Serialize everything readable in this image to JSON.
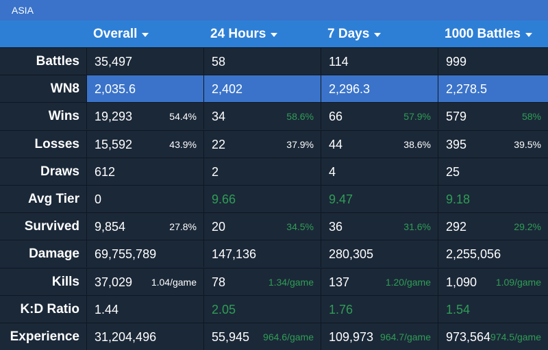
{
  "region": "ASIA",
  "columns": [
    "Overall",
    "24 Hours",
    "7 Days",
    "1000 Battles"
  ],
  "rows": [
    {
      "label": "Battles",
      "cells": [
        {
          "value": "35,497"
        },
        {
          "value": "58"
        },
        {
          "value": "114"
        },
        {
          "value": "999"
        }
      ]
    },
    {
      "label": "WN8",
      "highlight": true,
      "cells": [
        {
          "value": "2,035.6"
        },
        {
          "value": "2,402"
        },
        {
          "value": "2,296.3"
        },
        {
          "value": "2,278.5"
        }
      ]
    },
    {
      "label": "Wins",
      "cells": [
        {
          "value": "19,293",
          "sub": "54.4%"
        },
        {
          "value": "34",
          "sub": "58.6%",
          "sub_green": true
        },
        {
          "value": "66",
          "sub": "57.9%",
          "sub_green": true
        },
        {
          "value": "579",
          "sub": "58%",
          "sub_green": true
        }
      ]
    },
    {
      "label": "Losses",
      "cells": [
        {
          "value": "15,592",
          "sub": "43.9%"
        },
        {
          "value": "22",
          "sub": "37.9%"
        },
        {
          "value": "44",
          "sub": "38.6%"
        },
        {
          "value": "395",
          "sub": "39.5%"
        }
      ]
    },
    {
      "label": "Draws",
      "cells": [
        {
          "value": "612"
        },
        {
          "value": "2"
        },
        {
          "value": "4"
        },
        {
          "value": "25"
        }
      ]
    },
    {
      "label": "Avg Tier",
      "cells": [
        {
          "value": "0"
        },
        {
          "value": "9.66",
          "value_green": true
        },
        {
          "value": "9.47",
          "value_green": true
        },
        {
          "value": "9.18",
          "value_green": true
        }
      ]
    },
    {
      "label": "Survived",
      "cells": [
        {
          "value": "9,854",
          "sub": "27.8%"
        },
        {
          "value": "20",
          "sub": "34.5%",
          "sub_green": true
        },
        {
          "value": "36",
          "sub": "31.6%",
          "sub_green": true
        },
        {
          "value": "292",
          "sub": "29.2%",
          "sub_green": true
        }
      ]
    },
    {
      "label": "Damage",
      "cells": [
        {
          "value": "69,755,789"
        },
        {
          "value": "147,136"
        },
        {
          "value": "280,305"
        },
        {
          "value": "2,255,056"
        }
      ]
    },
    {
      "label": "Kills",
      "cells": [
        {
          "value": "37,029",
          "sub": "1.04/game"
        },
        {
          "value": "78",
          "sub": "1.34/game",
          "sub_green": true
        },
        {
          "value": "137",
          "sub": "1.20/game",
          "sub_green": true
        },
        {
          "value": "1,090",
          "sub": "1.09/game",
          "sub_green": true
        }
      ]
    },
    {
      "label": "K:D Ratio",
      "cells": [
        {
          "value": "1.44"
        },
        {
          "value": "2.05",
          "value_green": true
        },
        {
          "value": "1.76",
          "value_green": true
        },
        {
          "value": "1.54",
          "value_green": true
        }
      ]
    },
    {
      "label": "Experience",
      "cells": [
        {
          "value": "31,204,496"
        },
        {
          "value": "55,945",
          "sub": "964.6/game",
          "sub_green": true
        },
        {
          "value": "109,973",
          "sub": "964.7/game",
          "sub_green": true
        },
        {
          "value": "973,564",
          "sub": "974.5/game",
          "sub_green": true
        }
      ]
    }
  ],
  "colors": {
    "header_bg": "#2d7fd6",
    "region_bg": "#3a73c9",
    "highlight_bg": "#3a73c9",
    "body_bg": "#1b2838",
    "green": "#2f9e55"
  }
}
